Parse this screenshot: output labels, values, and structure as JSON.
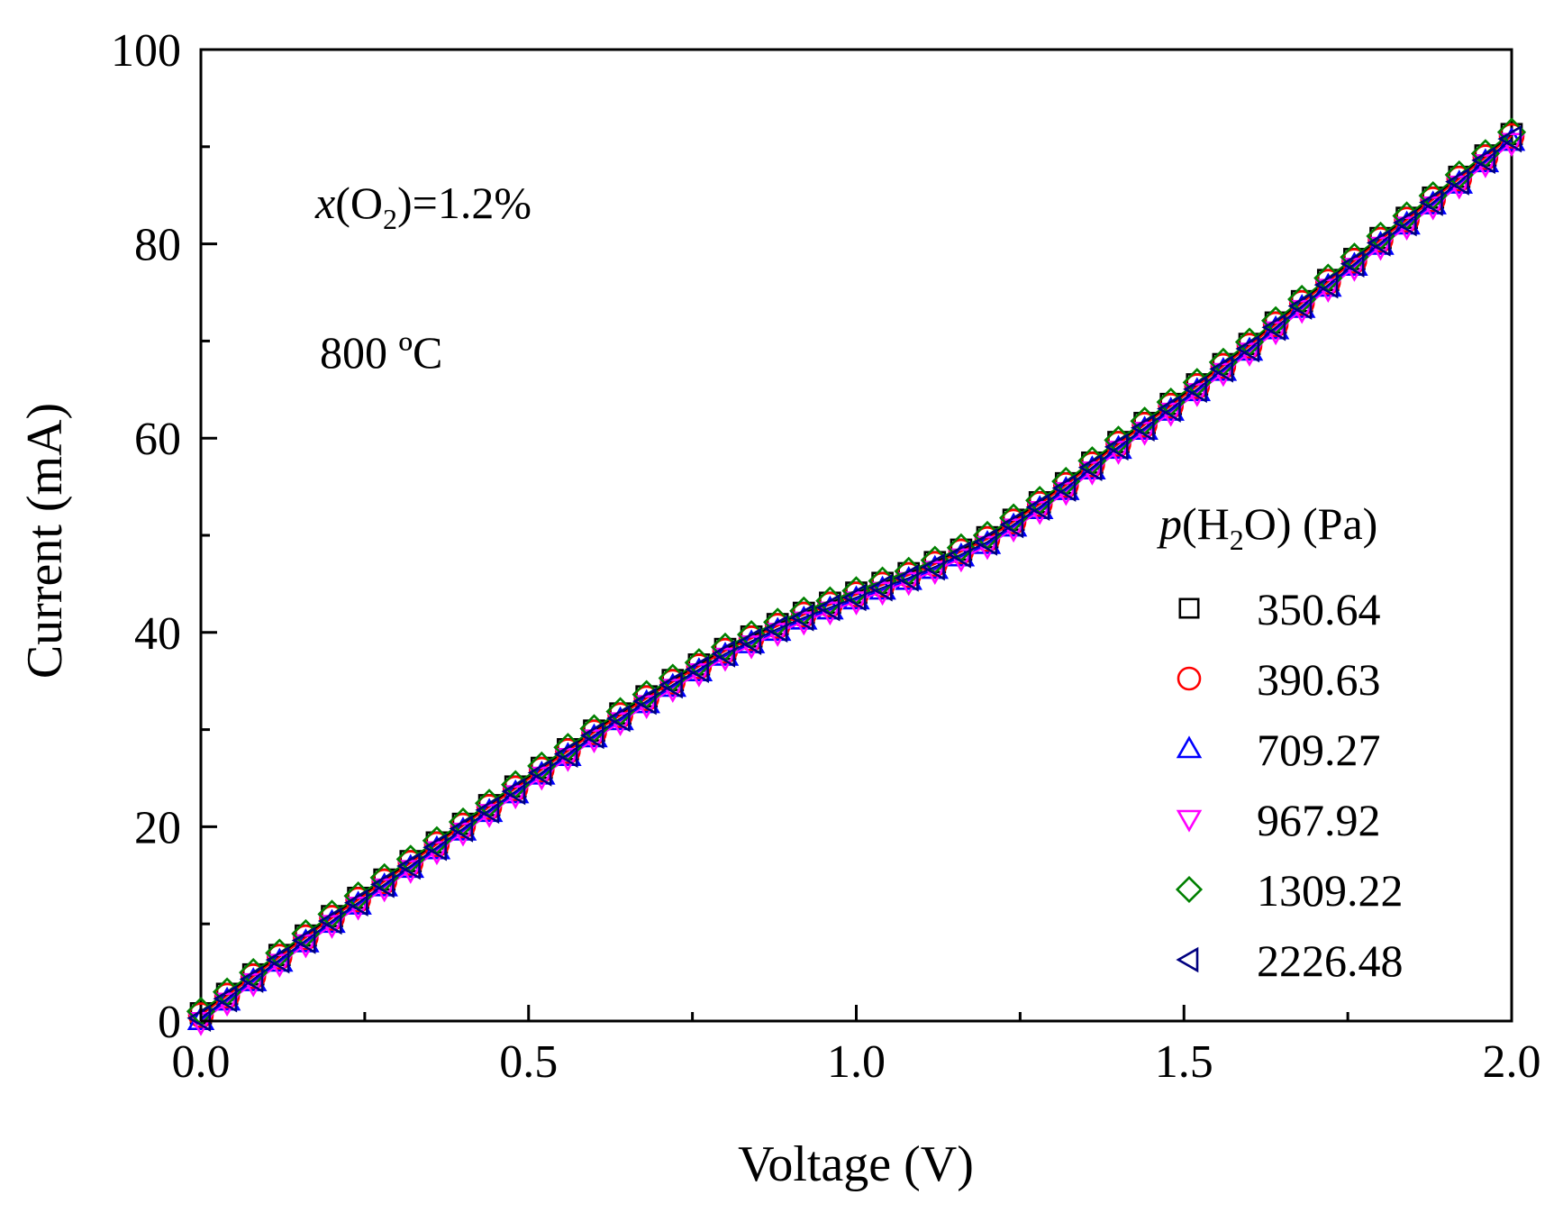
{
  "chart_data": {
    "type": "scatter",
    "title": "",
    "xlabel": "Voltage (V)",
    "ylabel": "Current (mA)",
    "xlim": [
      0,
      2.0
    ],
    "ylim": [
      0,
      100
    ],
    "xticks": [
      0.0,
      0.5,
      1.0,
      1.5,
      2.0
    ],
    "xtick_labels": [
      "0.0",
      "0.5",
      "1.0",
      "1.5",
      "2.0"
    ],
    "yticks": [
      0,
      20,
      40,
      60,
      80,
      100
    ],
    "ytick_labels": [
      "0",
      "20",
      "40",
      "60",
      "80",
      "100"
    ],
    "grid": false,
    "annotations": {
      "oxygen": {
        "italic": "x",
        "pre": "(O",
        "sub": "2",
        "post": ")=1.2%"
      },
      "temperature": "800 ºC"
    },
    "legend": {
      "position": "right-middle",
      "title": {
        "italic": "p",
        "pre": "(H",
        "sub": "2",
        "post": "O) (Pa)"
      }
    },
    "curve": {
      "voltage": [
        0,
        0.1,
        0.2,
        0.3,
        0.4,
        0.5,
        0.6,
        0.7,
        0.8,
        0.9,
        1.0,
        1.1,
        1.2,
        1.3,
        1.4,
        1.5,
        1.6,
        1.7,
        1.8,
        1.9,
        2.0
      ],
      "current": [
        0.5,
        5.5,
        10.5,
        15.2,
        20.0,
        24.8,
        29.6,
        34.0,
        38.0,
        41.2,
        43.8,
        46.3,
        49.5,
        54.0,
        59.3,
        64.2,
        69.4,
        74.9,
        80.3,
        85.5,
        91.0
      ]
    },
    "series": [
      {
        "name": "350.64",
        "marker": "square",
        "color": "#000000",
        "offset": 0.3
      },
      {
        "name": "390.63",
        "marker": "circle",
        "color": "#ff0000",
        "offset": 0.1
      },
      {
        "name": "709.27",
        "marker": "triangle-up",
        "color": "#0000ff",
        "offset": -0.4
      },
      {
        "name": "967.92",
        "marker": "triangle-down",
        "color": "#ff00ff",
        "offset": -0.6
      },
      {
        "name": "1309.22",
        "marker": "diamond",
        "color": "#008000",
        "offset": 0.5
      },
      {
        "name": "2226.48",
        "marker": "triangle-left",
        "color": "#000080",
        "offset": -0.2
      }
    ],
    "sample_step_v": 0.04
  }
}
